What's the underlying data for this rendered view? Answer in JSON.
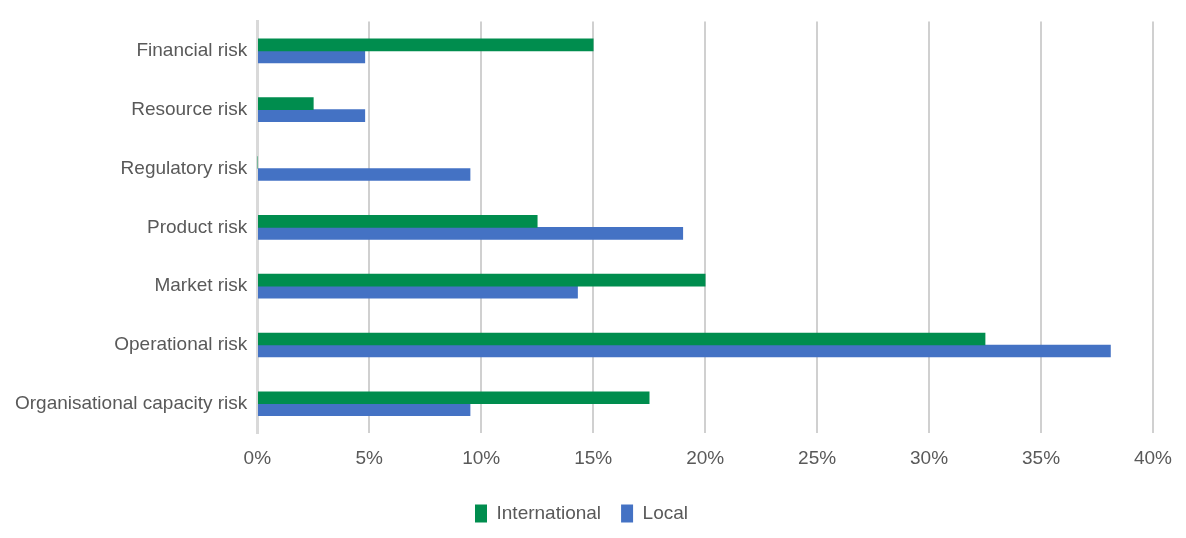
{
  "chart_data": {
    "type": "bar",
    "orientation": "horizontal",
    "categories": [
      "Financial risk",
      "Resource risk",
      "Regulatory risk",
      "Product risk",
      "Market risk",
      "Operational risk",
      "Organisational capacity risk"
    ],
    "series": [
      {
        "name": "International",
        "color": "#008d4e",
        "values": [
          15,
          2.5,
          0,
          12.5,
          20,
          32.5,
          17.5
        ]
      },
      {
        "name": "Local",
        "color": "#4472c4",
        "values": [
          4.8,
          4.8,
          9.5,
          19.0,
          14.3,
          38.1,
          9.5
        ]
      }
    ],
    "xlim": [
      0,
      40
    ],
    "xticks": [
      {
        "value": 0,
        "label": "0%"
      },
      {
        "value": 5,
        "label": "5%"
      },
      {
        "value": 10,
        "label": "10%"
      },
      {
        "value": 15,
        "label": "15%"
      },
      {
        "value": 20,
        "label": "20%"
      },
      {
        "value": 25,
        "label": "25%"
      },
      {
        "value": 30,
        "label": "30%"
      },
      {
        "value": 35,
        "label": "35%"
      },
      {
        "value": 40,
        "label": "40%"
      }
    ],
    "grid": "x",
    "legend": "bottom"
  }
}
